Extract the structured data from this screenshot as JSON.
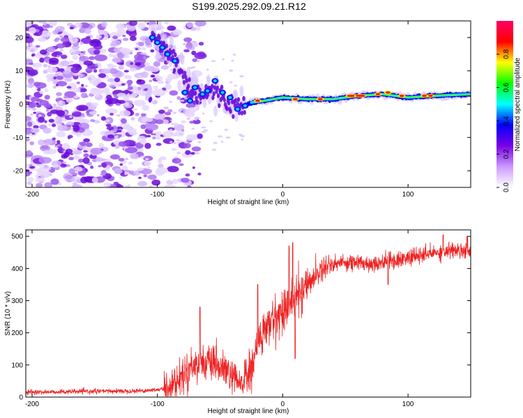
{
  "title": "S199.2025.292.09.21.R12",
  "chart_data": [
    {
      "type": "heatmap",
      "name": "spectrogram",
      "xlabel": "Height of straight line (km)",
      "ylabel": "Frequency (Hz)",
      "xlim": [
        -205,
        150
      ],
      "ylim": [
        -25,
        25
      ],
      "xticks": [
        -200,
        -100,
        0,
        100
      ],
      "yticks": [
        20,
        10,
        0,
        -10,
        -20
      ],
      "colorbar": {
        "label": "Normalized spectral amplitude",
        "range": [
          0,
          1
        ],
        "ticks": [
          "0.0",
          "0.2",
          "0.4",
          "0.6",
          "0.8"
        ],
        "tick_values": [
          0.0,
          0.2,
          0.4,
          0.6,
          0.8
        ],
        "colors": [
          "#ffffff",
          "#cc99ff",
          "#7a00e6",
          "#0000ff",
          "#00ffff",
          "#00ff00",
          "#ffff00",
          "#ff0000",
          "#ff0066"
        ]
      },
      "ridge": {
        "description_points": [
          [
            -105,
            20
          ],
          [
            -95,
            17
          ],
          [
            -85,
            13
          ],
          [
            -75,
            5
          ],
          [
            -65,
            3
          ],
          [
            -55,
            4
          ],
          [
            -45,
            1
          ],
          [
            -35,
            -1
          ],
          [
            -25,
            0.5
          ],
          [
            -15,
            1
          ],
          [
            0,
            2
          ],
          [
            20,
            1.5
          ],
          [
            40,
            1.5
          ],
          [
            60,
            2.5
          ],
          [
            80,
            3
          ],
          [
            100,
            2
          ],
          [
            120,
            2.5
          ],
          [
            150,
            3
          ]
        ],
        "strong_segments": [
          [
            -20,
            1
          ],
          [
            10,
            1.5
          ],
          [
            30,
            1.5
          ],
          [
            55,
            2.5
          ],
          [
            62,
            2.5
          ],
          [
            76,
            3
          ],
          [
            84,
            3.5
          ],
          [
            95,
            2.5
          ],
          [
            113,
            2.5
          ],
          [
            118,
            2.5
          ]
        ]
      },
      "noise_region": [
        -205,
        -85
      ]
    },
    {
      "type": "line",
      "name": "snr",
      "xlabel": "Height of straight line (km)",
      "ylabel": "SNR (10 * v/v)",
      "xlim": [
        -205,
        150
      ],
      "ylim": [
        0,
        520
      ],
      "xticks": [
        -200,
        -100,
        0,
        100
      ],
      "yticks": [
        0,
        100,
        200,
        300,
        400,
        500
      ],
      "color": "#ee2222",
      "series_trend": [
        [
          -205,
          15
        ],
        [
          -110,
          20
        ],
        [
          -95,
          25
        ],
        [
          -85,
          45
        ],
        [
          -75,
          90
        ],
        [
          -65,
          110
        ],
        [
          -55,
          100
        ],
        [
          -45,
          80
        ],
        [
          -35,
          40
        ],
        [
          -25,
          80
        ],
        [
          -20,
          170
        ],
        [
          -10,
          230
        ],
        [
          0,
          270
        ],
        [
          8,
          300
        ],
        [
          15,
          330
        ],
        [
          25,
          375
        ],
        [
          35,
          410
        ],
        [
          50,
          420
        ],
        [
          70,
          415
        ],
        [
          90,
          425
        ],
        [
          110,
          440
        ],
        [
          130,
          455
        ],
        [
          150,
          460
        ]
      ],
      "spikes": [
        [
          -66,
          280
        ],
        [
          -20,
          350
        ],
        [
          5,
          470
        ],
        [
          8,
          480
        ],
        [
          10,
          120
        ],
        [
          84,
          350
        ],
        [
          128,
          505
        ],
        [
          147,
          500
        ]
      ]
    }
  ]
}
